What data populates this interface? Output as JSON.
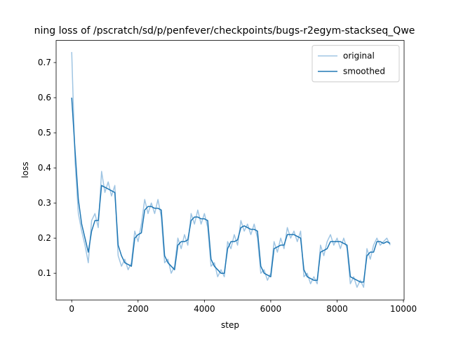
{
  "chart_data": {
    "type": "line",
    "title": "ning loss of /pscratch/sd/p/penfever/checkpoints/bugs-r2egym-stackseq_Qwe",
    "x_label": "step",
    "y_label": "loss",
    "x": [
      0,
      100,
      200,
      300,
      400,
      500,
      600,
      700,
      800,
      900,
      1000,
      1100,
      1200,
      1300,
      1400,
      1500,
      1600,
      1700,
      1800,
      1900,
      2000,
      2100,
      2200,
      2300,
      2400,
      2500,
      2600,
      2700,
      2800,
      2900,
      3000,
      3100,
      3200,
      3300,
      3400,
      3500,
      3600,
      3700,
      3800,
      3900,
      4000,
      4100,
      4200,
      4300,
      4400,
      4500,
      4600,
      4700,
      4800,
      4900,
      5000,
      5100,
      5200,
      5300,
      5400,
      5500,
      5600,
      5700,
      5800,
      5900,
      6000,
      6100,
      6200,
      6300,
      6400,
      6500,
      6600,
      6700,
      6800,
      6900,
      7000,
      7100,
      7200,
      7300,
      7400,
      7500,
      7600,
      7700,
      7800,
      7900,
      8000,
      8100,
      8200,
      8300,
      8400,
      8500,
      8600,
      8700,
      8800,
      8900,
      9000,
      9100,
      9200,
      9300,
      9400,
      9500,
      9600
    ],
    "series": [
      {
        "name": "original",
        "color": "#9fc5e3",
        "values": [
          0.73,
          0.42,
          0.27,
          0.22,
          0.18,
          0.13,
          0.25,
          0.27,
          0.23,
          0.39,
          0.33,
          0.36,
          0.32,
          0.35,
          0.15,
          0.12,
          0.14,
          0.11,
          0.13,
          0.22,
          0.19,
          0.24,
          0.31,
          0.27,
          0.3,
          0.27,
          0.31,
          0.26,
          0.13,
          0.14,
          0.1,
          0.12,
          0.2,
          0.17,
          0.21,
          0.18,
          0.27,
          0.24,
          0.28,
          0.24,
          0.27,
          0.23,
          0.12,
          0.13,
          0.09,
          0.11,
          0.09,
          0.19,
          0.17,
          0.21,
          0.18,
          0.25,
          0.22,
          0.24,
          0.21,
          0.24,
          0.2,
          0.1,
          0.11,
          0.08,
          0.1,
          0.19,
          0.16,
          0.2,
          0.17,
          0.23,
          0.2,
          0.22,
          0.19,
          0.22,
          0.09,
          0.1,
          0.07,
          0.09,
          0.07,
          0.18,
          0.15,
          0.19,
          0.21,
          0.18,
          0.2,
          0.17,
          0.2,
          0.17,
          0.07,
          0.09,
          0.06,
          0.08,
          0.06,
          0.17,
          0.14,
          0.18,
          0.2,
          0.18,
          0.19,
          0.2,
          0.18
        ]
      },
      {
        "name": "smoothed",
        "color": "#1f77b4",
        "values": [
          0.6,
          0.45,
          0.31,
          0.24,
          0.2,
          0.16,
          0.22,
          0.25,
          0.25,
          0.35,
          0.345,
          0.34,
          0.335,
          0.33,
          0.18,
          0.15,
          0.13,
          0.125,
          0.12,
          0.2,
          0.21,
          0.215,
          0.28,
          0.29,
          0.29,
          0.285,
          0.285,
          0.28,
          0.15,
          0.13,
          0.12,
          0.11,
          0.18,
          0.19,
          0.19,
          0.195,
          0.25,
          0.26,
          0.26,
          0.255,
          0.255,
          0.25,
          0.14,
          0.12,
          0.11,
          0.1,
          0.1,
          0.17,
          0.19,
          0.19,
          0.195,
          0.23,
          0.235,
          0.23,
          0.225,
          0.225,
          0.22,
          0.12,
          0.1,
          0.095,
          0.09,
          0.17,
          0.175,
          0.18,
          0.18,
          0.21,
          0.21,
          0.21,
          0.205,
          0.2,
          0.11,
          0.09,
          0.085,
          0.08,
          0.08,
          0.16,
          0.165,
          0.17,
          0.19,
          0.19,
          0.19,
          0.19,
          0.185,
          0.18,
          0.09,
          0.085,
          0.08,
          0.075,
          0.075,
          0.15,
          0.16,
          0.16,
          0.19,
          0.19,
          0.185,
          0.19,
          0.185
        ]
      }
    ],
    "xlim": [
      -470,
      10020
    ],
    "ylim": [
      0.024,
      0.763
    ],
    "xticks": [
      0,
      2000,
      4000,
      6000,
      8000,
      10000
    ],
    "yticks": [
      0.1,
      0.2,
      0.3,
      0.4,
      0.5,
      0.6,
      0.7
    ],
    "legend": "upper right"
  }
}
